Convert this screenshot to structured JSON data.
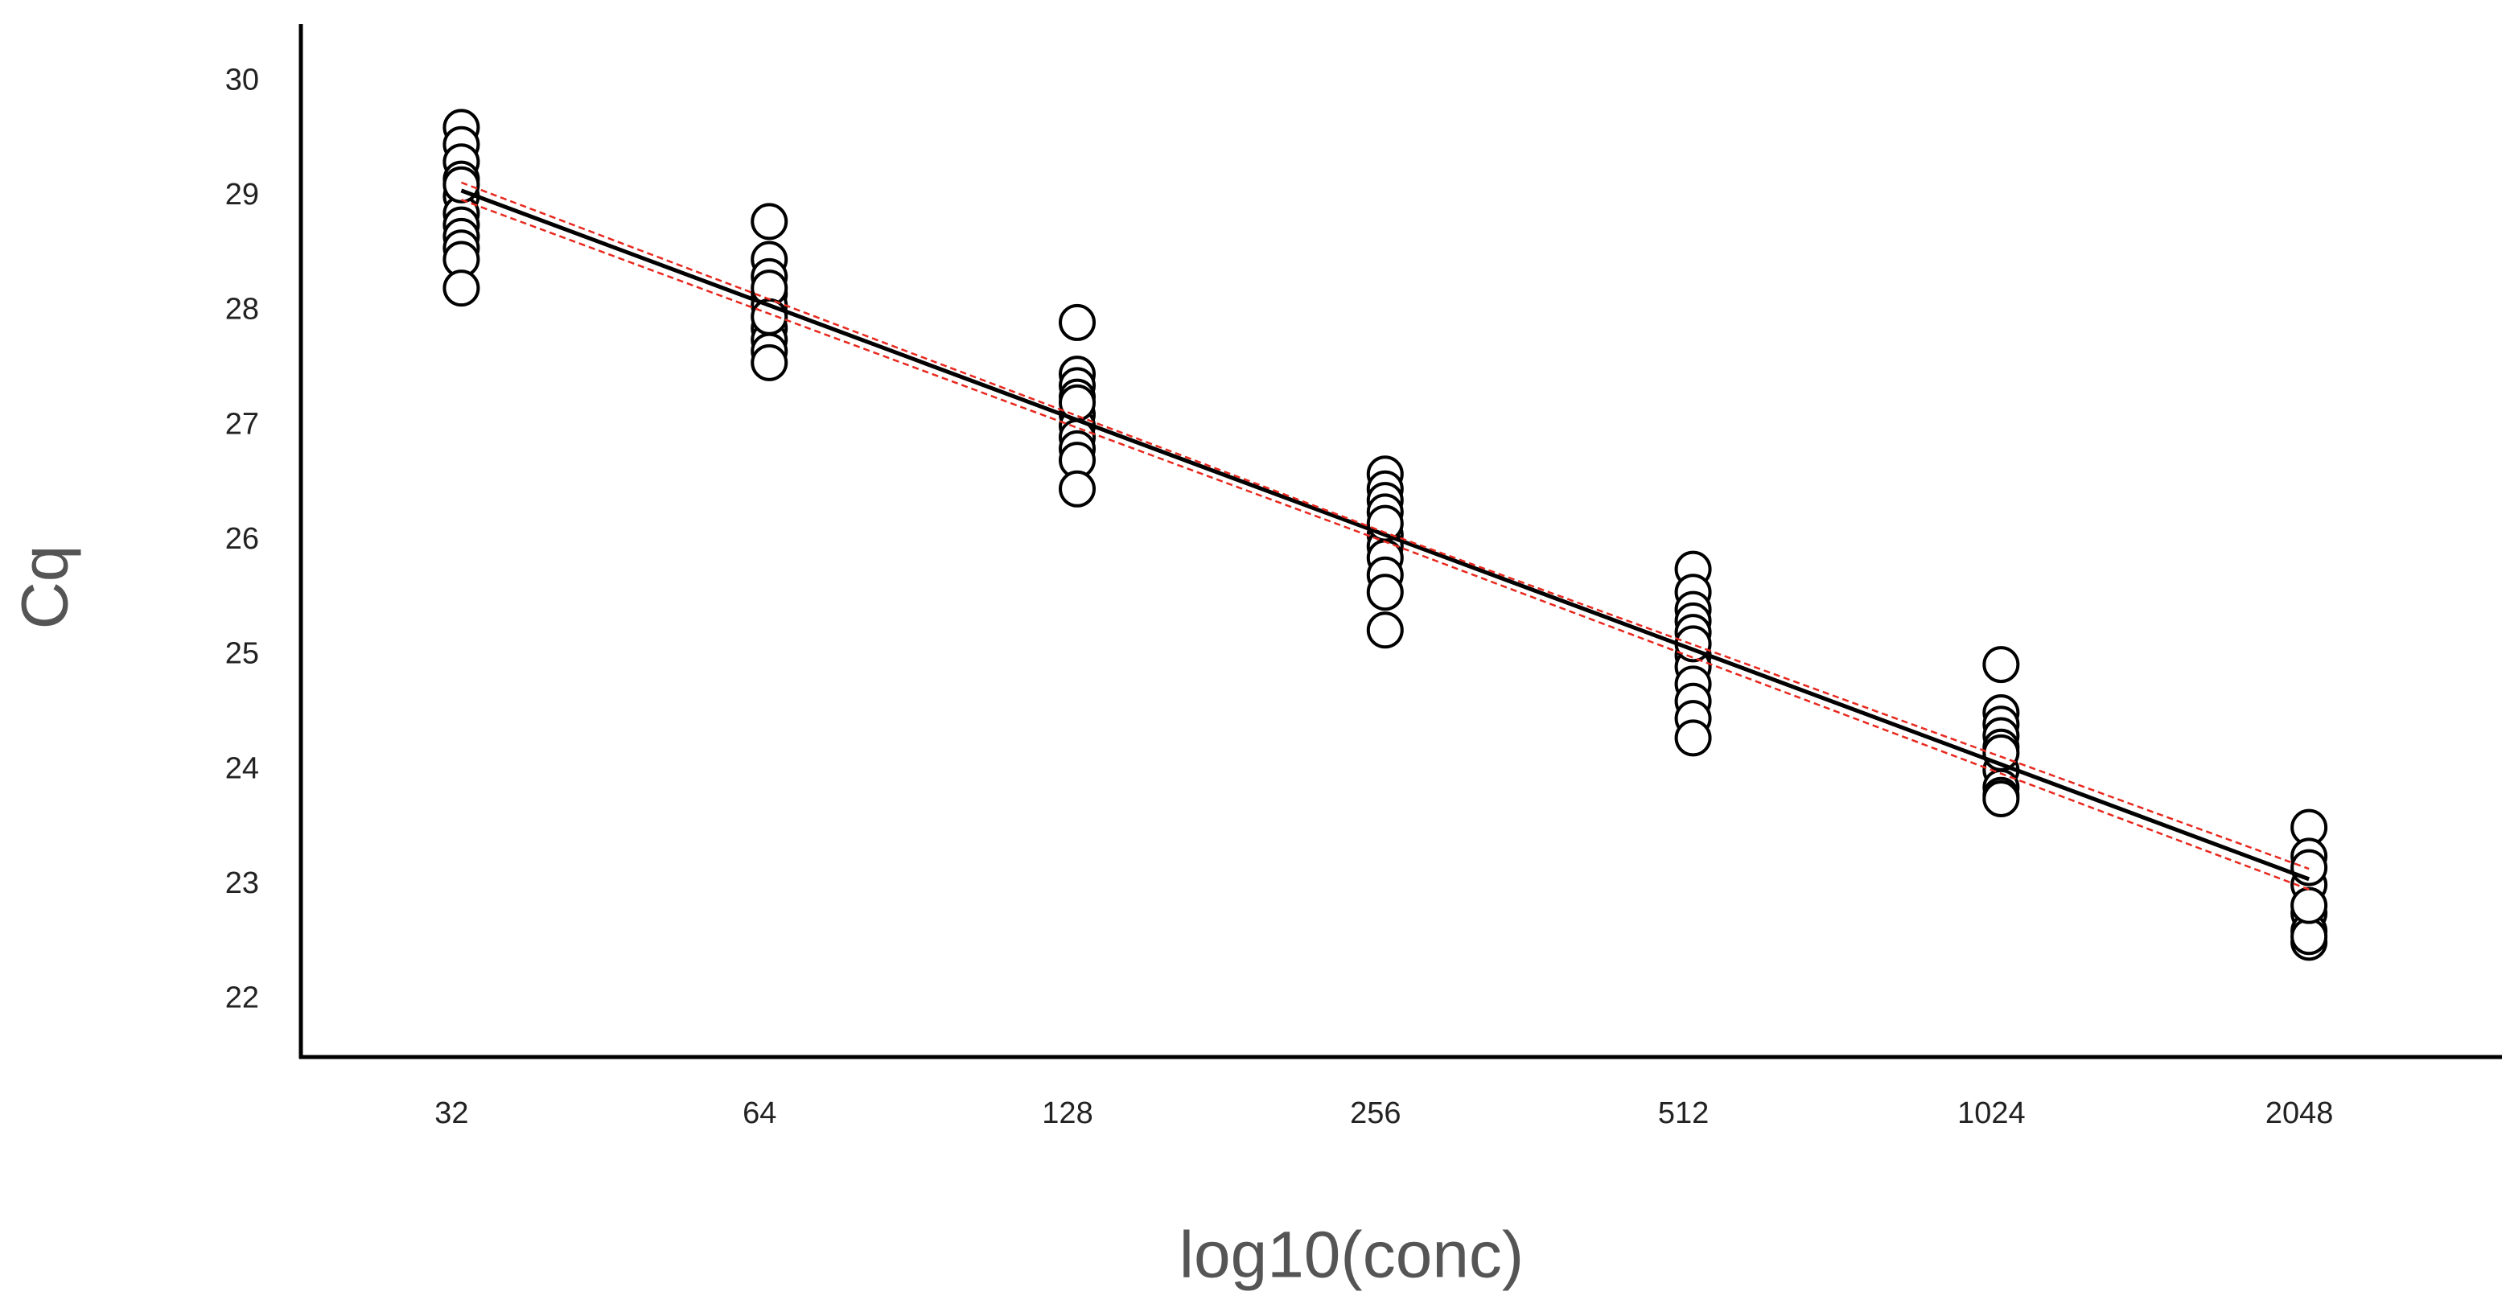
{
  "chart_data": {
    "type": "scatter",
    "x_label": "log10(conc)",
    "y_label": "Cq",
    "log_x": true,
    "grid": false,
    "xlim": [
      22.3,
      3162
    ],
    "ylim": [
      21.5,
      30.5
    ],
    "xticks": [
      32,
      64,
      128,
      256,
      512,
      1024,
      2048
    ],
    "yticks": [
      22,
      23,
      24,
      25,
      26,
      27,
      28,
      29,
      30
    ],
    "series": [
      {
        "color": "#ffffff",
        "x": [
          32,
          32,
          32,
          32,
          32,
          32,
          32,
          32,
          32,
          32,
          32,
          32,
          64,
          64,
          64,
          64,
          64,
          64,
          64,
          64,
          64,
          64,
          64,
          128,
          128,
          128,
          128,
          128,
          128,
          128,
          128,
          128,
          128,
          128,
          256,
          256,
          256,
          256,
          256,
          256,
          256,
          256,
          256,
          256,
          256,
          512,
          512,
          512,
          512,
          512,
          512,
          512,
          512,
          512,
          512,
          512,
          512,
          1024,
          1024,
          1024,
          1024,
          1024,
          1024,
          1024,
          1024,
          1024,
          1024,
          2048,
          2048,
          2048,
          2048,
          2048,
          2048,
          2048,
          2048,
          2048
        ],
        "values": [
          29.6,
          29.45,
          29.3,
          29.15,
          29.0,
          28.85,
          28.75,
          28.65,
          28.55,
          28.45,
          28.2,
          29.1,
          28.78,
          28.45,
          28.3,
          28.15,
          28.05,
          27.85,
          27.75,
          27.65,
          27.55,
          28.2,
          27.95,
          27.9,
          27.45,
          27.35,
          27.25,
          27.1,
          27.0,
          26.9,
          26.8,
          26.7,
          26.45,
          27.2,
          26.58,
          26.45,
          26.35,
          26.25,
          26.05,
          25.95,
          25.85,
          25.7,
          25.55,
          25.22,
          26.15,
          25.75,
          25.55,
          25.4,
          25.3,
          25.2,
          25.0,
          24.9,
          24.75,
          24.6,
          24.45,
          24.28,
          25.1,
          24.92,
          24.5,
          24.4,
          24.3,
          24.2,
          24.0,
          23.85,
          23.78,
          23.75,
          24.15,
          23.5,
          23.25,
          23.0,
          22.75,
          22.6,
          22.5,
          22.55,
          23.15,
          22.82
        ]
      }
    ],
    "lines": [
      {
        "color": "#000000",
        "dash": false,
        "x": [
          32,
          2048
        ],
        "values": [
          29.05,
          23.05
        ]
      },
      {
        "color": "#e8281e",
        "dash": true,
        "x": [
          32,
          256,
          2048
        ],
        "values": [
          29.12,
          26.07,
          23.14
        ]
      },
      {
        "color": "#e8281e",
        "dash": true,
        "x": [
          32,
          256,
          2048
        ],
        "values": [
          28.97,
          25.99,
          22.96
        ]
      }
    ]
  }
}
